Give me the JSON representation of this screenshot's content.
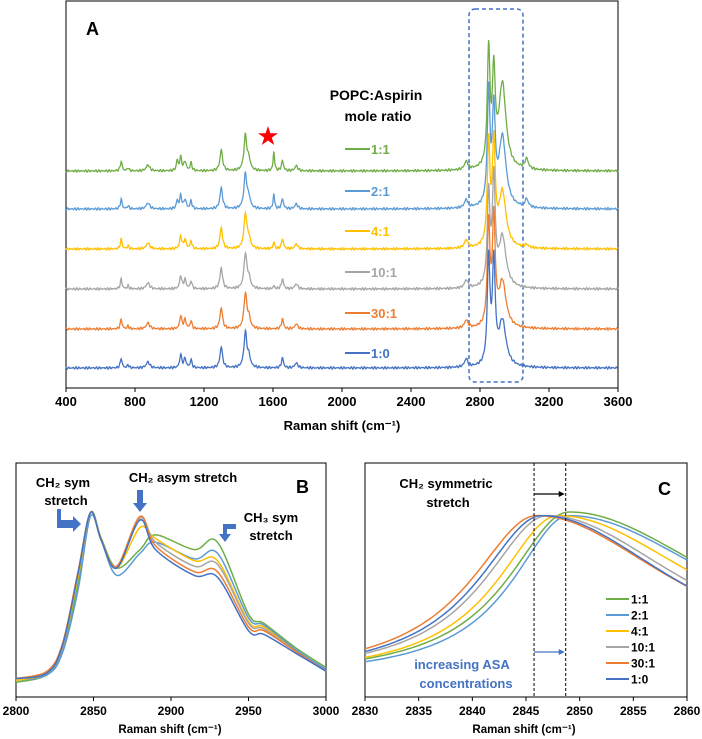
{
  "chart_data": [
    {
      "panel": "A",
      "type": "line",
      "panel_label": "A",
      "xlabel": "Raman shift (cm⁻¹)",
      "xlim": [
        400,
        3600
      ],
      "xticks": [
        "400",
        "800",
        "1200",
        "1600",
        "2000",
        "2400",
        "2800",
        "3200",
        "3600"
      ],
      "xtick_values": [
        400,
        800,
        1200,
        1600,
        2000,
        2400,
        2800,
        3200,
        3600
      ],
      "ylim": [
        0,
        387
      ],
      "legend_title": [
        "POPC:Aspirin",
        "mole ratio"
      ],
      "highlight_box_range": [
        2740,
        3050
      ],
      "star_marker_at": 1570,
      "shared_peaks": [
        [
          720,
          10,
          6
        ],
        [
          760,
          3,
          6
        ],
        [
          875,
          6,
          12
        ],
        [
          1065,
          13,
          7
        ],
        [
          1090,
          9,
          8
        ],
        [
          1125,
          8,
          6
        ],
        [
          1300,
          21,
          9
        ],
        [
          1440,
          35,
          10
        ],
        [
          1460,
          10,
          10
        ],
        [
          1655,
          10,
          7
        ],
        [
          1735,
          5,
          10
        ],
        [
          2720,
          8,
          12
        ]
      ],
      "series": [
        {
          "name": "1:1",
          "color": "#70ad47",
          "offset": 217,
          "peaks": [
            [
              2850,
              115,
              9
            ],
            [
              2880,
              90,
              10
            ],
            [
              2930,
              85,
              25
            ],
            [
              1605,
              19,
              5
            ],
            [
              3070,
              10,
              12
            ],
            [
              1045,
              10,
              6
            ]
          ]
        },
        {
          "name": "2:1",
          "color": "#5b9bd5",
          "offset": 179,
          "peaks": [
            [
              2850,
              112,
              9
            ],
            [
              2880,
              92,
              10
            ],
            [
              2930,
              70,
              25
            ],
            [
              1605,
              15,
              5
            ],
            [
              3070,
              8,
              12
            ],
            [
              1045,
              8,
              6
            ]
          ]
        },
        {
          "name": "4:1",
          "color": "#ffc000",
          "offset": 139,
          "peaks": [
            [
              2850,
              100,
              9
            ],
            [
              2880,
              100,
              10
            ],
            [
              2930,
              55,
              25
            ],
            [
              1605,
              7,
              5
            ],
            [
              3070,
              3,
              12
            ]
          ]
        },
        {
          "name": "10:1",
          "color": "#a5a5a5",
          "offset": 99,
          "peaks": [
            [
              2850,
              90,
              9
            ],
            [
              2880,
              105,
              10
            ],
            [
              2930,
              50,
              25
            ],
            [
              1605,
              3,
              5
            ]
          ]
        },
        {
          "name": "30:1",
          "color": "#ed7d31",
          "offset": 59,
          "peaks": [
            [
              2850,
              100,
              9
            ],
            [
              2880,
              105,
              10
            ],
            [
              2930,
              45,
              25
            ]
          ]
        },
        {
          "name": "1:0",
          "color": "#4472c4",
          "offset": 20,
          "peaks": [
            [
              2850,
              105,
              9
            ],
            [
              2880,
              100,
              10
            ],
            [
              2930,
              45,
              25
            ]
          ]
        }
      ]
    },
    {
      "panel": "B",
      "type": "line",
      "panel_label": "B",
      "xlabel": "Raman shift (cm⁻¹)",
      "xlim": [
        2800,
        3000
      ],
      "xticks": [
        "2800",
        "2850",
        "2900",
        "2950",
        "3000"
      ],
      "xtick_values": [
        2800,
        2850,
        2900,
        2950,
        3000
      ],
      "ylim": [
        0,
        1.27
      ],
      "annotations": {
        "ch2_sym": [
          "CH₂ sym",
          "stretch"
        ],
        "ch2_asym": "CH₂ asym stretch",
        "ch3_sym": [
          "CH₃ sym",
          "stretch"
        ]
      },
      "x": [
        2800,
        2820,
        2830,
        2840,
        2848,
        2855,
        2865,
        2880,
        2890,
        2915,
        2930,
        2950,
        2960,
        2980,
        3000
      ],
      "series": [
        {
          "name": "1:1",
          "color": "#70ad47",
          "values": [
            0.08,
            0.12,
            0.25,
            0.62,
            1.0,
            0.86,
            0.7,
            0.8,
            0.88,
            0.8,
            0.84,
            0.45,
            0.4,
            0.27,
            0.16
          ]
        },
        {
          "name": "2:1",
          "color": "#5b9bd5",
          "values": [
            0.09,
            0.12,
            0.24,
            0.58,
            0.98,
            0.85,
            0.66,
            0.78,
            0.84,
            0.75,
            0.78,
            0.43,
            0.39,
            0.26,
            0.15
          ]
        },
        {
          "name": "4:1",
          "color": "#ffc000",
          "values": [
            0.09,
            0.13,
            0.27,
            0.65,
            1.0,
            0.85,
            0.7,
            0.92,
            0.86,
            0.74,
            0.74,
            0.41,
            0.38,
            0.25,
            0.14
          ]
        },
        {
          "name": "10:1",
          "color": "#a5a5a5",
          "values": [
            0.1,
            0.13,
            0.27,
            0.67,
            1.0,
            0.85,
            0.7,
            0.97,
            0.84,
            0.71,
            0.72,
            0.4,
            0.37,
            0.25,
            0.14
          ]
        },
        {
          "name": "30:1",
          "color": "#ed7d31",
          "values": [
            0.1,
            0.14,
            0.29,
            0.68,
            1.0,
            0.85,
            0.71,
            0.98,
            0.82,
            0.68,
            0.68,
            0.38,
            0.36,
            0.25,
            0.14
          ]
        },
        {
          "name": "1:0",
          "color": "#4472c4",
          "values": [
            0.1,
            0.13,
            0.28,
            0.67,
            1.0,
            0.85,
            0.7,
            0.96,
            0.8,
            0.66,
            0.65,
            0.36,
            0.34,
            0.24,
            0.14
          ]
        }
      ]
    },
    {
      "panel": "C",
      "type": "line",
      "panel_label": "C",
      "xlabel": "Raman shift (cm⁻¹)",
      "xlim": [
        2830,
        2860
      ],
      "xticks": [
        "2830",
        "2835",
        "2840",
        "2845",
        "2850",
        "2855",
        "2860"
      ],
      "xtick_values": [
        2830,
        2835,
        2840,
        2845,
        2850,
        2855,
        2860
      ],
      "ylim": [
        0,
        1.29
      ],
      "title": [
        "CH₂ symmetric",
        "stretch"
      ],
      "shift_markers": [
        2845.75,
        2848.7
      ],
      "arrow_note": [
        "increasing ASA",
        "concentrations"
      ],
      "series": [
        {
          "name": "1:1",
          "color": "#70ad47",
          "center": 2849,
          "amp": 0.92,
          "wl": 7,
          "wr": 18,
          "base": 0.1
        },
        {
          "name": "2:1",
          "color": "#5b9bd5",
          "center": 2849,
          "amp": 0.9,
          "wl": 6.5,
          "wr": 18,
          "base": 0.1
        },
        {
          "name": "4:1",
          "color": "#ffc000",
          "center": 2848,
          "amp": 0.9,
          "wl": 7,
          "wr": 17,
          "base": 0.1
        },
        {
          "name": "10:1",
          "color": "#a5a5a5",
          "center": 2847,
          "amp": 0.9,
          "wl": 7.3,
          "wr": 16,
          "base": 0.1
        },
        {
          "name": "30:1",
          "color": "#ed7d31",
          "center": 2846,
          "amp": 0.9,
          "wl": 7.6,
          "wr": 16,
          "base": 0.1
        },
        {
          "name": "1:0",
          "color": "#4472c4",
          "center": 2846.5,
          "amp": 0.9,
          "wl": 7.4,
          "wr": 15.5,
          "base": 0.1
        }
      ]
    }
  ]
}
